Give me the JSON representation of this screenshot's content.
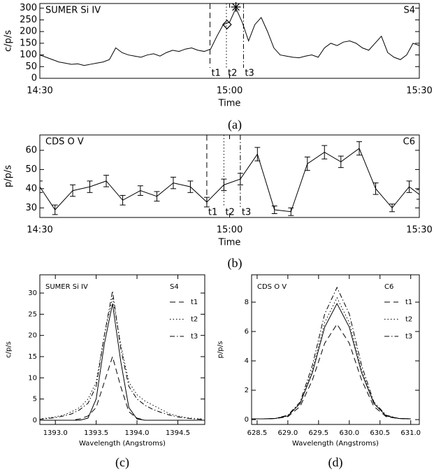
{
  "chart_data": [
    {
      "type": "line",
      "title": "SUMER Si IV",
      "region": "S4",
      "caption": "(a)",
      "ylabel": "c/p/s",
      "xlabel": "Time",
      "xlim": [
        0,
        60
      ],
      "xticks": [
        {
          "value": 0,
          "label": "14:30"
        },
        {
          "value": 30,
          "label": "15:00"
        },
        {
          "value": 60,
          "label": "15:30"
        }
      ],
      "ylim": [
        0,
        320
      ],
      "yticks": [
        0,
        50,
        100,
        150,
        200,
        250,
        300
      ],
      "x": [
        0,
        1,
        2,
        3,
        4,
        5,
        6,
        7,
        8,
        9,
        10,
        11,
        12,
        13,
        14,
        15,
        16,
        17,
        18,
        19,
        20,
        21,
        22,
        23,
        24,
        25,
        26,
        27,
        28,
        29,
        30,
        31,
        32,
        33,
        34,
        35,
        36,
        37,
        38,
        39,
        40,
        41,
        42,
        43,
        44,
        45,
        46,
        47,
        48,
        49,
        50,
        51,
        52,
        53,
        54,
        55,
        56,
        57,
        58,
        59,
        60
      ],
      "series": [
        {
          "color": "#000000",
          "style": "solid",
          "values": [
            100,
            90,
            80,
            70,
            65,
            60,
            62,
            55,
            60,
            65,
            70,
            80,
            130,
            110,
            100,
            95,
            90,
            100,
            105,
            95,
            110,
            120,
            115,
            125,
            130,
            120,
            115,
            125,
            180,
            230,
            240,
            300,
            240,
            160,
            230,
            260,
            200,
            130,
            100,
            95,
            90,
            88,
            95,
            100,
            90,
            130,
            150,
            140,
            155,
            160,
            150,
            130,
            120,
            150,
            180,
            110,
            90,
            80,
            100,
            150,
            140
          ]
        }
      ],
      "markers": [
        {
          "label": "t1",
          "x": 26.9,
          "style": "dashed"
        },
        {
          "label": "t2",
          "x": 29.5,
          "style": "dotted"
        },
        {
          "label": "t3",
          "x": 32.2,
          "style": "dashdot"
        }
      ],
      "points": [
        {
          "x": 29.6,
          "y": 230,
          "symbol": "diamond"
        },
        {
          "x": 31,
          "y": 305,
          "symbol": "asterisk"
        }
      ]
    },
    {
      "type": "errorline",
      "title": "CDS O V",
      "region": "C6",
      "caption": "(b)",
      "ylabel": "p/p/s",
      "xlabel": "Time",
      "xlim": [
        0,
        60
      ],
      "xticks": [
        {
          "value": 0,
          "label": "14:30"
        },
        {
          "value": 30,
          "label": "15:00"
        },
        {
          "value": 60,
          "label": "15:30"
        }
      ],
      "ylim": [
        25,
        68
      ],
      "yticks": [
        30,
        40,
        50,
        60
      ],
      "x": [
        0,
        2.4,
        5.2,
        7.9,
        10.5,
        13.1,
        15.9,
        18.5,
        21.1,
        23.8,
        26.4,
        29.1,
        31.7,
        34.4,
        37.1,
        39.7,
        42.3,
        45.0,
        47.6,
        50.5,
        53.1,
        55.7,
        58.4,
        60
      ],
      "series": [
        {
          "color": "#000000",
          "style": "solid",
          "values": [
            41,
            29,
            39,
            41,
            44,
            34,
            39,
            36,
            43,
            41,
            33,
            42,
            45,
            58,
            29,
            28,
            53,
            59,
            54,
            61,
            40,
            30,
            41,
            37
          ],
          "errors": [
            3,
            2.5,
            3,
            3,
            3,
            2.5,
            2.5,
            2.5,
            3,
            3,
            2.5,
            3,
            3,
            3.5,
            2,
            2,
            3.5,
            3.5,
            3,
            3.5,
            3,
            2,
            3,
            2.5
          ]
        }
      ],
      "markers": [
        {
          "label": "t1",
          "x": 26.4,
          "style": "dashed"
        },
        {
          "label": "t2",
          "x": 29.1,
          "style": "dotted"
        },
        {
          "label": "t3",
          "x": 31.7,
          "style": "dashdot"
        }
      ]
    },
    {
      "type": "line",
      "title": "SUMER Si IV",
      "region": "S4",
      "caption": "(c)",
      "ylabel": "c/p/s",
      "xlabel": "Wavelength (Angstroms)",
      "xlim": [
        1392.81,
        1394.83
      ],
      "xticks": [
        {
          "value": 1393.0,
          "label": "1393.0"
        },
        {
          "value": 1393.5,
          "label": "1393.5"
        },
        {
          "value": 1394.0,
          "label": "1394.0"
        },
        {
          "value": 1394.5,
          "label": "1394.5"
        }
      ],
      "ylim": [
        -1,
        34.3
      ],
      "yticks": [
        0,
        5,
        10,
        15,
        20,
        25,
        30
      ],
      "x": [
        1392.8,
        1392.9,
        1393.0,
        1393.1,
        1393.2,
        1393.3,
        1393.4,
        1393.5,
        1393.6,
        1393.7,
        1393.8,
        1393.9,
        1394.0,
        1394.1,
        1394.2,
        1394.3,
        1394.4,
        1394.5,
        1394.6,
        1394.7,
        1394.8
      ],
      "series": [
        {
          "color": "#000000",
          "style": "solid",
          "values": [
            0,
            0,
            0,
            0,
            0,
            0,
            0.5,
            5,
            18,
            27.5,
            14,
            3,
            0.3,
            0,
            0,
            0,
            0,
            0,
            0,
            0,
            0
          ]
        },
        {
          "name": "t1",
          "color": "#000000",
          "style": "dashed",
          "values": [
            0,
            0,
            0,
            0,
            0,
            0.3,
            1,
            3,
            9,
            15,
            8,
            2,
            0.5,
            0,
            0,
            0,
            0,
            0,
            0,
            0,
            0
          ]
        },
        {
          "name": "t2",
          "color": "#000000",
          "style": "dotted",
          "values": [
            0.3,
            0.5,
            0.8,
            1.2,
            2,
            3,
            5,
            9,
            20,
            29,
            18,
            9,
            6,
            4.5,
            3.5,
            2.5,
            1.5,
            1,
            0.6,
            0.4,
            0.3
          ]
        },
        {
          "name": "t3",
          "color": "#000000",
          "style": "dashdot",
          "values": [
            0.2,
            0.4,
            0.6,
            1,
            1.5,
            2.5,
            4,
            8,
            20,
            30.5,
            17,
            8,
            5,
            3.5,
            2.5,
            1.8,
            1.2,
            0.8,
            0.5,
            0.3,
            0.2
          ]
        }
      ]
    },
    {
      "type": "line",
      "title": "CDS O V",
      "region": "C6",
      "caption": "(d)",
      "ylabel": "p/p/s",
      "xlabel": "Wavelength (Angstroms)",
      "xlim": [
        628.41,
        631.14
      ],
      "xticks": [
        {
          "value": 628.5,
          "label": "628.5"
        },
        {
          "value": 629.0,
          "label": "629.0"
        },
        {
          "value": 629.5,
          "label": "629.5"
        },
        {
          "value": 630.0,
          "label": "630.0"
        },
        {
          "value": 630.5,
          "label": "630.5"
        },
        {
          "value": 631.0,
          "label": "631.0"
        }
      ],
      "ylim": [
        -0.33,
        9.86
      ],
      "yticks": [
        0,
        2,
        4,
        6,
        8
      ],
      "x": [
        628.4,
        628.6,
        628.8,
        629.0,
        629.2,
        629.4,
        629.6,
        629.8,
        630.0,
        630.2,
        630.4,
        630.6,
        630.8,
        631.0
      ],
      "series": [
        {
          "color": "#000000",
          "style": "solid",
          "values": [
            0.05,
            0.05,
            0.08,
            0.25,
            1.1,
            3.2,
            6.3,
            7.9,
            6.3,
            3.2,
            1.1,
            0.25,
            0.08,
            0.05
          ]
        },
        {
          "name": "t1",
          "color": "#000000",
          "style": "dashed",
          "values": [
            0.05,
            0.05,
            0.07,
            0.2,
            0.9,
            2.7,
            5.2,
            6.5,
            5.2,
            2.7,
            0.9,
            0.2,
            0.07,
            0.05
          ]
        },
        {
          "name": "t2",
          "color": "#000000",
          "style": "dotted",
          "values": [
            0.05,
            0.05,
            0.08,
            0.27,
            1.1,
            3.4,
            6.6,
            8.3,
            6.6,
            3.4,
            1.1,
            0.27,
            0.08,
            0.05
          ]
        },
        {
          "name": "t3",
          "color": "#000000",
          "style": "dashdot",
          "values": [
            0.05,
            0.05,
            0.08,
            0.3,
            1.2,
            3.7,
            7.2,
            9.0,
            7.2,
            3.7,
            1.2,
            0.3,
            0.08,
            0.05
          ]
        }
      ]
    }
  ]
}
